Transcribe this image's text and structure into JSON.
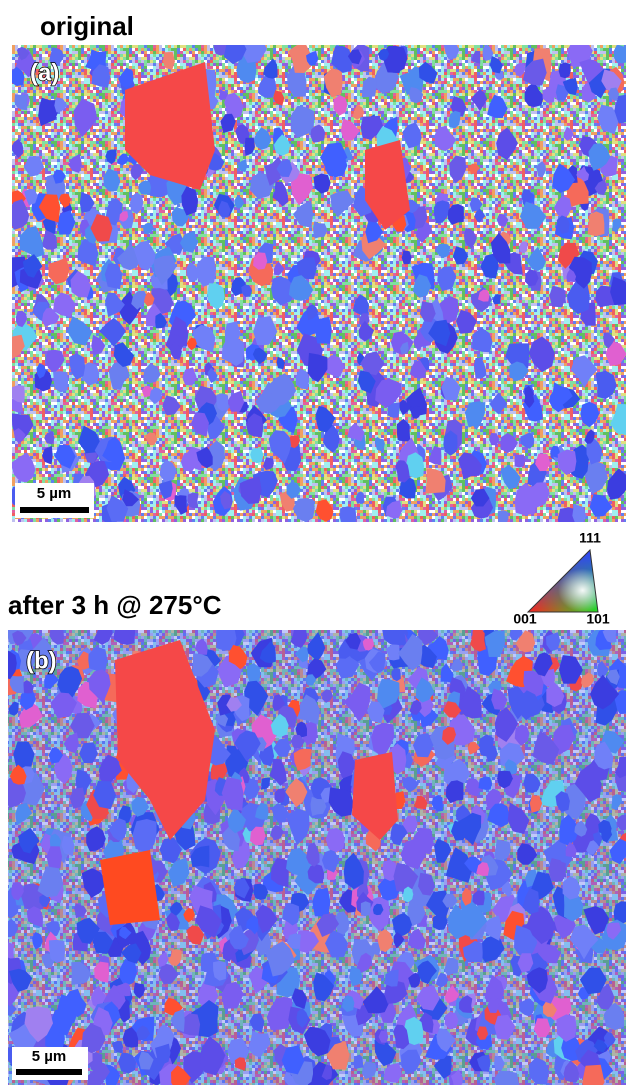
{
  "panels": [
    {
      "title": "original",
      "label": "(a)",
      "scale_bar": "5 µm"
    },
    {
      "title": "after 3 h @ 275°C",
      "label": "(b)",
      "scale_bar": "5 µm"
    }
  ],
  "color_key": {
    "top": "111",
    "left": "001",
    "right": "101"
  }
}
